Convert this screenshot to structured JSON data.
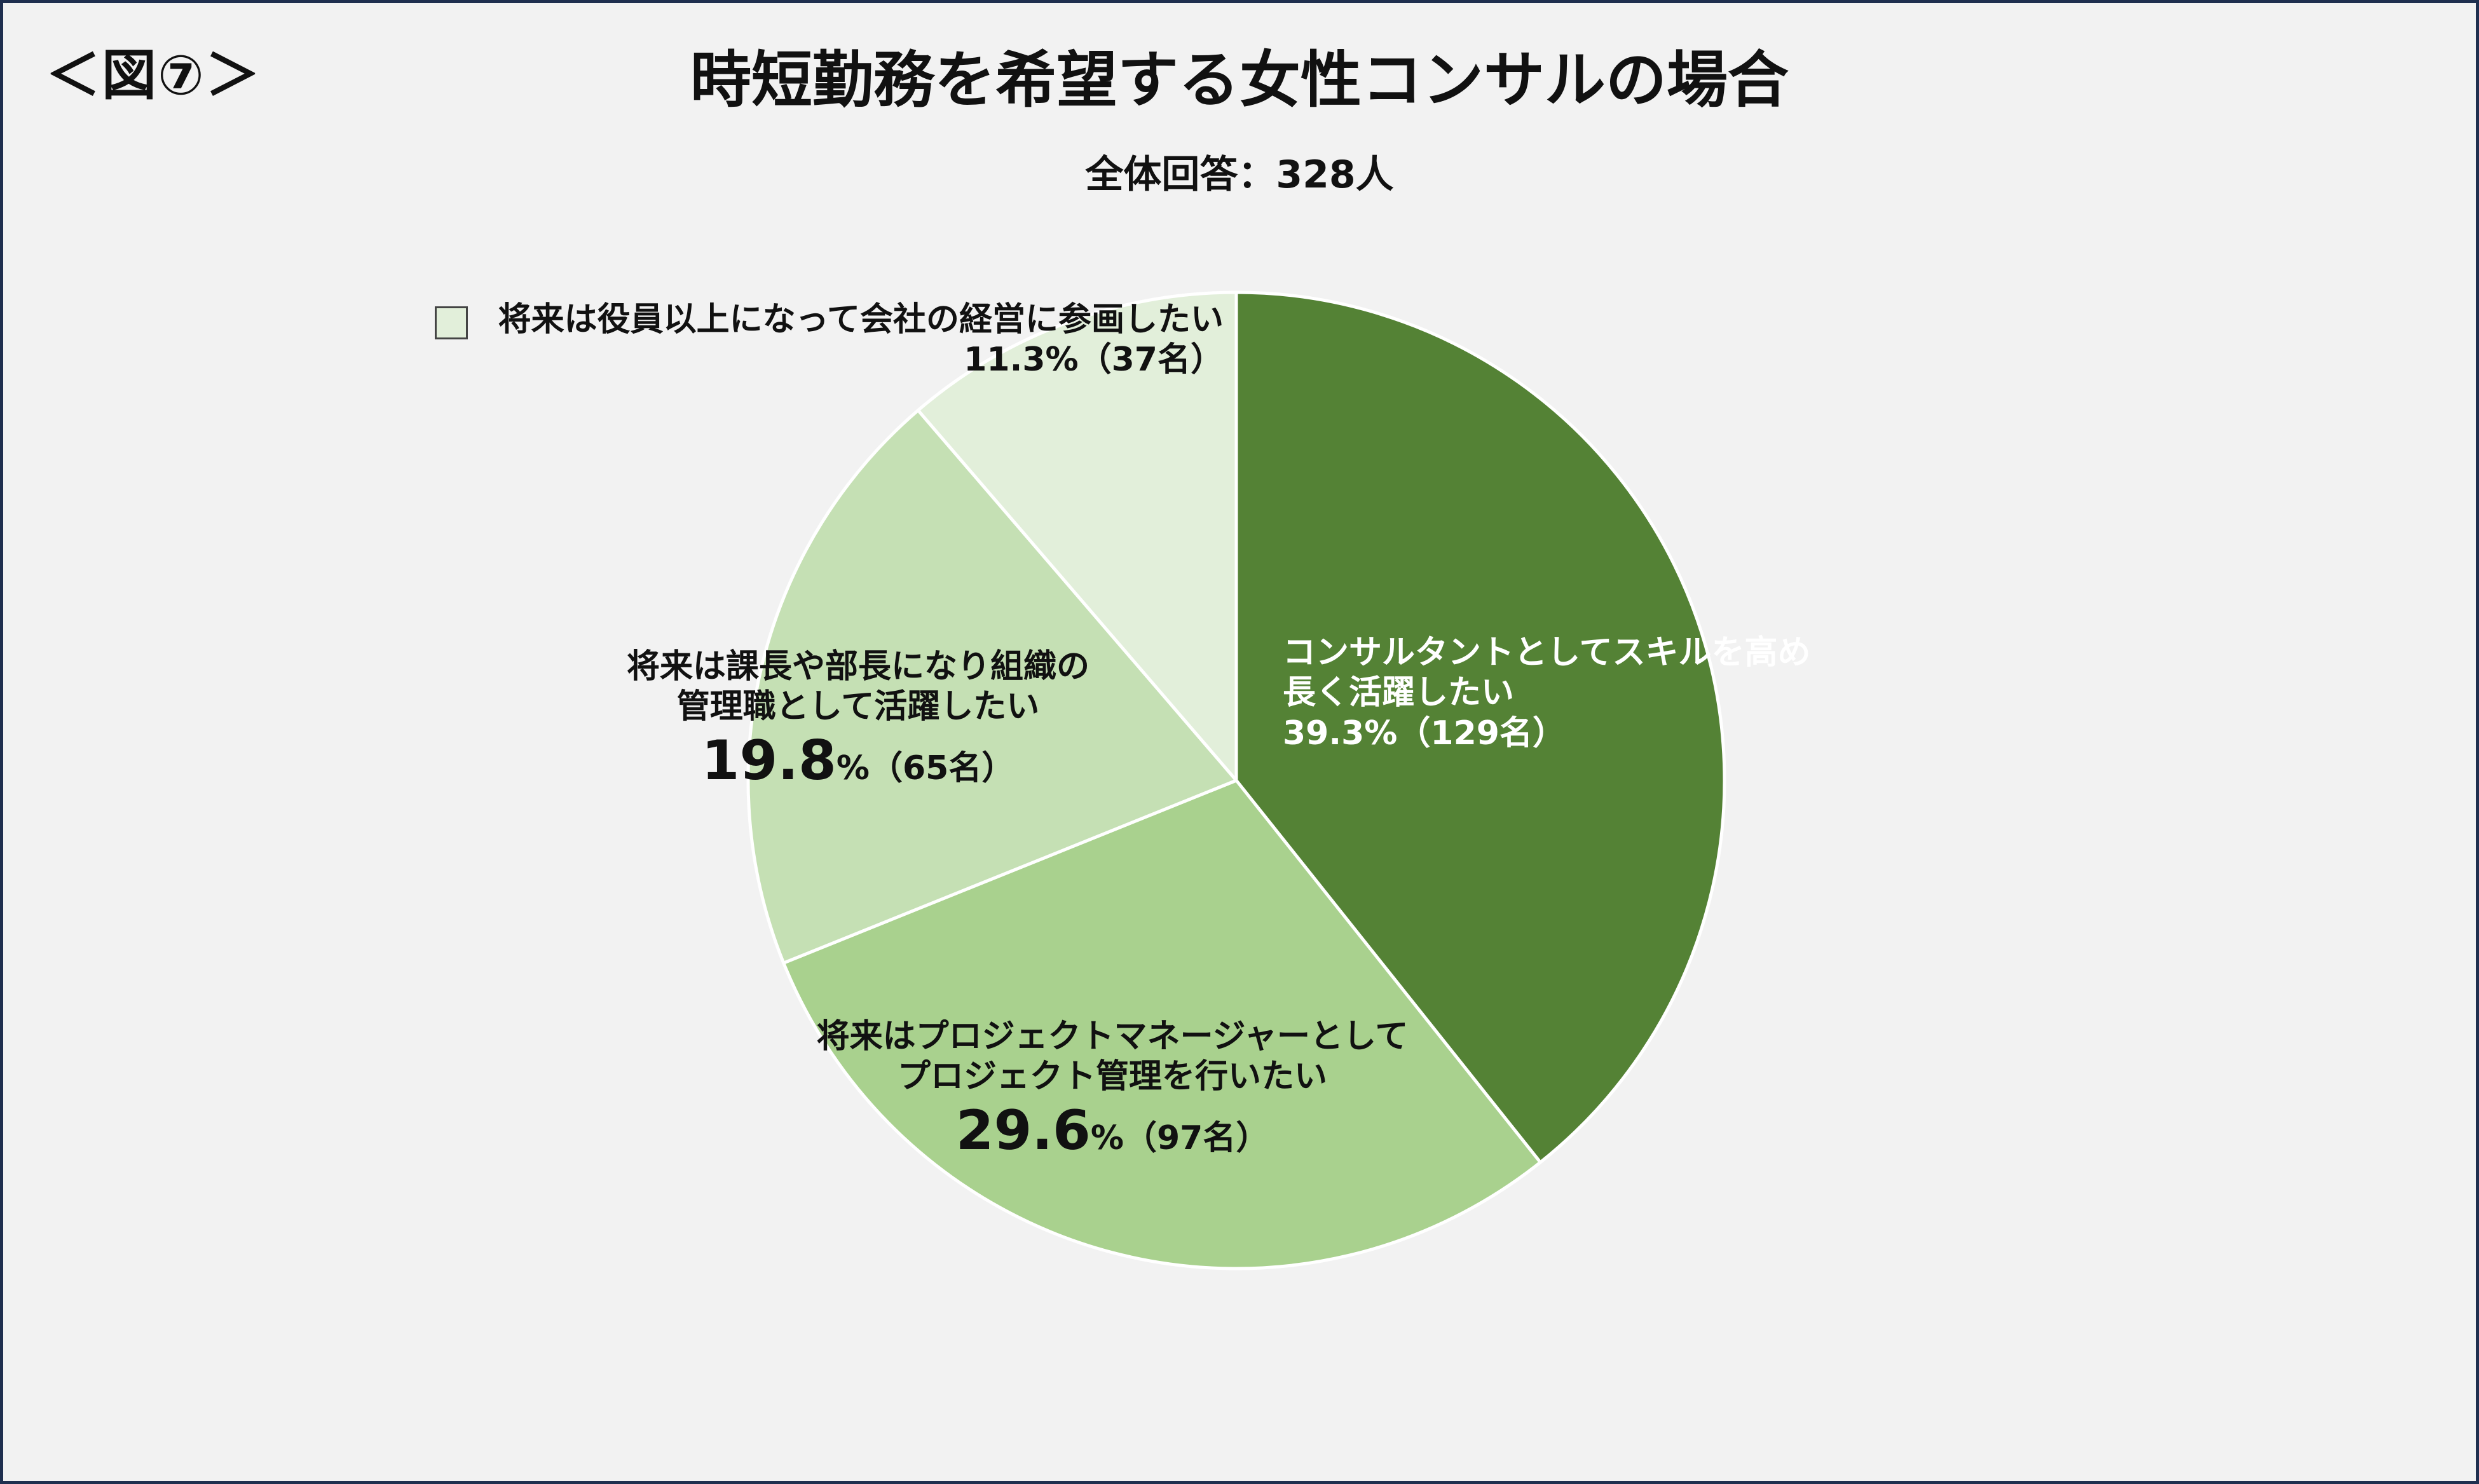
{
  "figure_label": "＜図⑦＞",
  "chart_data": {
    "type": "pie",
    "title": "時短勤務を希望する女性コンサルの場合",
    "subtitle": "全体回答：328人",
    "slices": [
      {
        "label_lines": [
          "コンサルタントとしてスキルを高め",
          "長く活躍したい"
        ],
        "percent": 39.3,
        "percent_text": "39.3%",
        "count_text": "（129名）",
        "count": 129,
        "color": "#548235",
        "text_color": "#ffffff"
      },
      {
        "label_lines": [
          "将来はプロジェクトマネージャーとして",
          "プロジェクト管理を行いたい"
        ],
        "percent": 29.6,
        "percent_text": "29.6",
        "unit_text": "%",
        "count_text": "（97名）",
        "count": 97,
        "color": "#a9d18e",
        "text_color": "#111111"
      },
      {
        "label_lines": [
          "将来は課長や部長になり組織の",
          "管理職として活躍したい"
        ],
        "percent": 19.8,
        "percent_text": "19.8",
        "unit_text": "%",
        "count_text": "（65名）",
        "count": 65,
        "color": "#c5e0b4",
        "text_color": "#111111"
      },
      {
        "label_lines": [
          "将来は役員以上になって会社の経営に参画したい"
        ],
        "percent": 11.3,
        "percent_text": "11.3%",
        "count_text": "（37名）",
        "count": 37,
        "color": "#e2efda",
        "text_color": "#111111"
      }
    ],
    "start_angle_deg": 0,
    "direction": "clockwise",
    "slice_border_color": "#ffffff",
    "legend": "none"
  }
}
